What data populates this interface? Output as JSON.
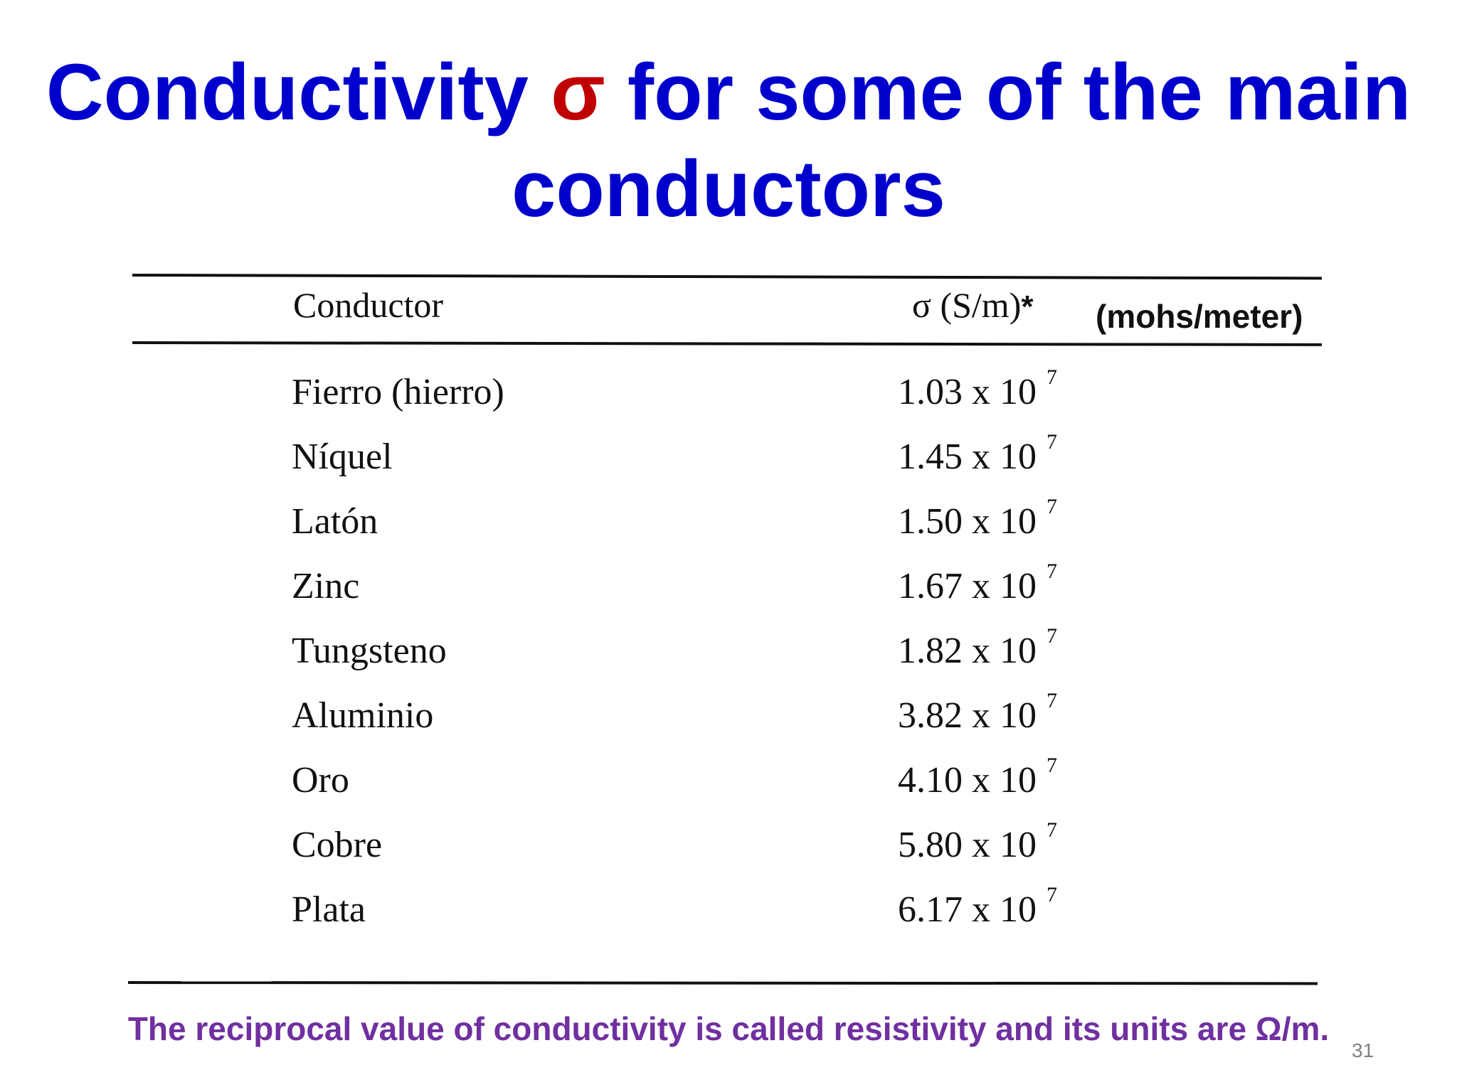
{
  "title": {
    "part1": "Conductivity ",
    "symbol": "σ",
    "part2": " for some of the main conductors"
  },
  "table": {
    "header": {
      "conductor": "Conductor",
      "sigma": "σ (S/m)",
      "sigma_mark": "*",
      "units": "(mohs/meter)"
    },
    "rows": [
      {
        "name": "Fierro (hierro)",
        "mantissa": "1.03 x 10",
        "exponent": "7"
      },
      {
        "name": "Níquel",
        "mantissa": "1.45 x 10",
        "exponent": "7"
      },
      {
        "name": "Latón",
        "mantissa": "1.50 x 10",
        "exponent": "7"
      },
      {
        "name": "Zinc",
        "mantissa": "1.67 x 10",
        "exponent": "7"
      },
      {
        "name": "Tungsteno",
        "mantissa": "1.82 x 10",
        "exponent": "7"
      },
      {
        "name": "Aluminio",
        "mantissa": "3.82 x 10",
        "exponent": "7"
      },
      {
        "name": "Oro",
        "mantissa": "4.10 x 10",
        "exponent": "7"
      },
      {
        "name": "Cobre",
        "mantissa": "5.80 x 10",
        "exponent": "7"
      },
      {
        "name": "Plata",
        "mantissa": "6.17 x 10",
        "exponent": "7"
      }
    ]
  },
  "footnote": "The reciprocal value of conductivity is called resistivity and its units are Ω/m.",
  "slide_number": "31",
  "colors": {
    "title": "#0000cc",
    "sigma_symbol": "#c00000",
    "footnote": "#7030a0"
  }
}
